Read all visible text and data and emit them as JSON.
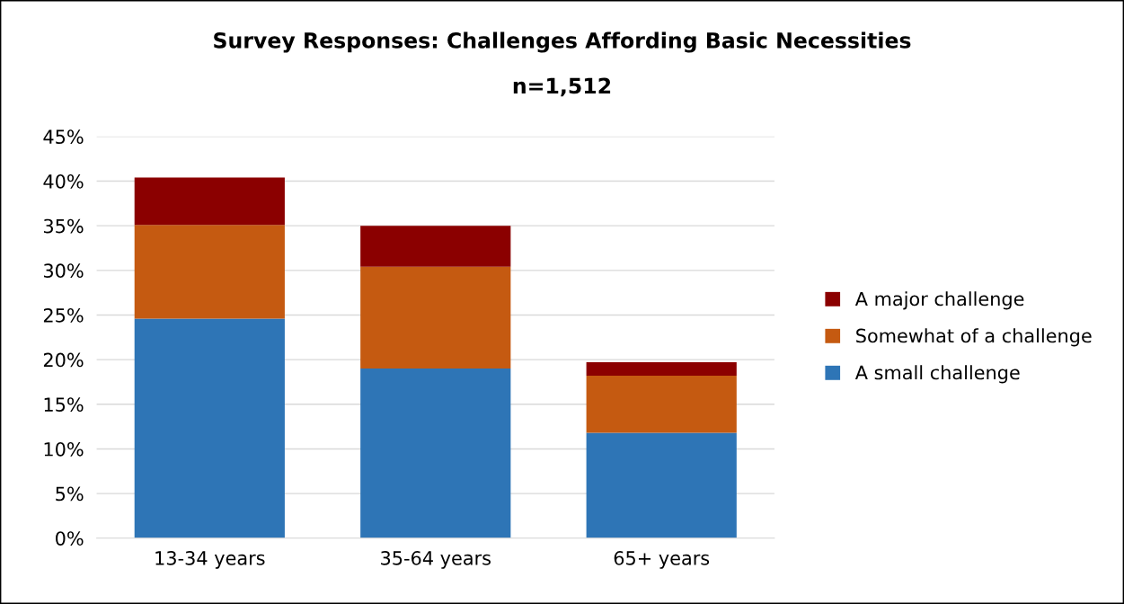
{
  "chart_data": {
    "type": "bar",
    "title": "Survey Responses: Challenges Affording Basic Necessities",
    "subtitle": "n=1,512",
    "categories": [
      "13-34 years",
      "35-64 years",
      "65+ years"
    ],
    "stacked": true,
    "series": [
      {
        "name": "A small challenge",
        "color": "#2e75b6",
        "values": [
          24.6,
          19.0,
          11.8
        ]
      },
      {
        "name": "Somewhat of a challenge",
        "color": "#c55a11",
        "values": [
          10.5,
          11.4,
          6.4
        ]
      },
      {
        "name": "A major challenge",
        "color": "#8b0000",
        "values": [
          5.3,
          4.6,
          1.5
        ]
      }
    ],
    "ylim": [
      0,
      45
    ],
    "yticks": [
      {
        "value": 0,
        "label": "0%"
      },
      {
        "value": 5,
        "label": "5%"
      },
      {
        "value": 10,
        "label": "10%"
      },
      {
        "value": 15,
        "label": "15%"
      },
      {
        "value": 20,
        "label": "20%"
      },
      {
        "value": 25,
        "label": "25%"
      },
      {
        "value": 30,
        "label": "30%"
      },
      {
        "value": 35,
        "label": "35%"
      },
      {
        "value": 40,
        "label": "40%"
      },
      {
        "value": 45,
        "label": "45%"
      }
    ],
    "grid": "y",
    "legend": "right"
  }
}
